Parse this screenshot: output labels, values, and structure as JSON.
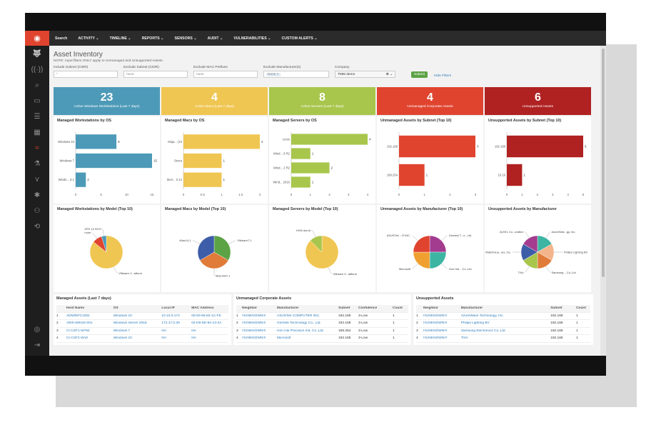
{
  "nav": [
    "Search",
    "ACTIVITY ⌄",
    "TIMELINE ⌄",
    "REPORTS ⌄",
    "SENSORS ⌄",
    "AUDIT ⌄",
    "VULNERABILITIES ⌄",
    "CUSTOM ALERTS ⌄"
  ],
  "title": "Asset Inventory",
  "note": "NOTE: Input filters ONLY apply to Unmanaged and Unsupported Assets.",
  "filters": {
    "subnet_label": "Include Subnet (CIDR)",
    "subnet_value": "*",
    "excl_subnet_label": "Exclude Subnet (CIDR)",
    "excl_subnet_value": "none",
    "excl_mac_label": "Exclude MAC Prefixes",
    "excl_mac_value": "none",
    "excl_manu_label": "Exclude Manufacturer(s)",
    "excl_manu_value": "None ×",
    "company_label": "Company",
    "company_value": "TMM demo",
    "submit": "Submit",
    "hide": "Hide Filters"
  },
  "cards": [
    {
      "n": "23",
      "l": "Active Windows Workstations (Last 7 days)",
      "color": "#4d9ab8"
    },
    {
      "n": "4",
      "l": "Active Macs (Last 7 days)",
      "color": "#f0c652"
    },
    {
      "n": "8",
      "l": "Active Servers (Last 7 days)",
      "color": "#a8c64c"
    },
    {
      "n": "4",
      "l": "Unmanaged Corporate Assets",
      "color": "#e0442f"
    },
    {
      "n": "6",
      "l": "Unsupported Assets",
      "color": "#b02121"
    }
  ],
  "panels_bar": [
    {
      "title": "Managed Workstations by OS",
      "color": "#4d9ab8",
      "max": 15,
      "ticks": [
        "0",
        "5",
        "10",
        "15"
      ],
      "cats": [
        "Windows 10",
        "Windows 7",
        "Windo... 8.1"
      ],
      "values": [
        8,
        15,
        2
      ]
    },
    {
      "title": "Managed Macs by OS",
      "color": "#f0c652",
      "max": 2,
      "ticks": [
        "0",
        "0.5",
        "1",
        "1.5",
        "2"
      ],
      "cats": [
        "Moja... (10",
        "Sierra",
        "Sierr... 0.12"
      ],
      "values": [
        2,
        1,
        1
      ]
    },
    {
      "title": "Managed Servers by OS",
      "color": "#a8c64c",
      "max": 4,
      "ticks": [
        "0",
        "1",
        "2",
        "3",
        "4"
      ],
      "cats": [
        "Linux",
        "Wind... 8 R2",
        "Wind... 2 R2",
        "Wind... 2016"
      ],
      "values": [
        4,
        1,
        2,
        1
      ]
    },
    {
      "title": "Unmanaged Assets by Subnet (Top 10)",
      "color": "#e0442f",
      "max": 3,
      "ticks": [
        "0",
        "1",
        "2",
        "3"
      ],
      "cats": [
        "192.168",
        "169.254"
      ],
      "values": [
        3,
        1
      ]
    },
    {
      "title": "Unsupported Assets by Subnet (Top 10)",
      "color": "#b02121",
      "max": 5,
      "ticks": [
        "0",
        "1",
        "2",
        "3",
        "4",
        "5"
      ],
      "cats": [
        "192.168",
        "10.16"
      ],
      "values": [
        5,
        1
      ]
    }
  ],
  "panels_pie": [
    {
      "title": "Managed Workstations by Model (Top 10)",
      "slices": [
        {
          "v": 18,
          "c": "#f0c652",
          "l": "VMware V...atform"
        },
        {
          "v": 2,
          "c": "#e0442f",
          "l": "none"
        },
        {
          "v": 1,
          "c": "#4d9ab8",
          "l": "XPS 13 9370"
        }
      ]
    },
    {
      "title": "Managed Macs by Model (Top 10)",
      "slices": [
        {
          "v": 1,
          "c": "#5ba345",
          "l": "VMware7,1"
        },
        {
          "v": 1,
          "c": "#e07b39",
          "l": "Macmini7,1"
        },
        {
          "v": 1,
          "c": "#3e5da8",
          "l": "iMac14,1"
        }
      ]
    },
    {
      "title": "Managed Servers by Model (Top 10)",
      "slices": [
        {
          "v": 7,
          "c": "#f0c652",
          "l": "VMware V...latform"
        },
        {
          "v": 1,
          "c": "#a8c64c",
          "l": "HVM domU"
        }
      ]
    },
    {
      "title": "Unmanaged Assets by Manufacturer (Top 10)",
      "slices": [
        {
          "v": 1,
          "c": "#a33b8f",
          "l": "Gemtek T...o., Ltd"
        },
        {
          "v": 1,
          "c": "#3db5a3",
          "l": "Hon Hai ...Co.,Ltd."
        },
        {
          "v": 1,
          "c": "#f0a030",
          "l": "Microsoft"
        },
        {
          "v": 1,
          "c": "#e0442f",
          "l": "ASUSTek ...R INC."
        }
      ]
    },
    {
      "title": "Unsupported Assets by Manufacturer",
      "slices": [
        {
          "v": 1,
          "c": "#3db5a3",
          "l": "AzureWav...gy, Inc."
        },
        {
          "v": 1,
          "c": "#f4b48a",
          "l": "Philips Lighting BV"
        },
        {
          "v": 1,
          "c": "#e07b39",
          "l": "Samsung ...Co.,Ltd"
        },
        {
          "v": 1,
          "c": "#a8c64c",
          "l": "TiVo"
        },
        {
          "v": 1,
          "c": "#3e5da8",
          "l": "WatchGua...ies, Inc."
        },
        {
          "v": 1,
          "c": "#a33b8f",
          "l": "ZyXEL Co...oration"
        }
      ]
    }
  ],
  "t1": {
    "title": "Managed Assets (Last 7 days)",
    "cols": [
      "",
      "Host Name",
      "OS",
      "Local IP",
      "MAC Address"
    ],
    "rows": [
      [
        "1",
        "ADMINPC1002",
        "Windows 10",
        "10.10.0.172",
        "00-50-56-83-1C-FE"
      ],
      [
        "2",
        "AWS-WIN16-001",
        "Windows Server 2016",
        "172.17.0.30",
        "02-D6-5D-94-13-2A"
      ],
      [
        "3",
        "CI-CSF1-W764",
        "Windows 7",
        "NA",
        "NA"
      ],
      [
        "4",
        "CI-CSF2-W10",
        "Windows 10",
        "NA",
        "NA"
      ]
    ]
  },
  "t2": {
    "title": "Unmanaged Corporate Assets",
    "cols": [
      "",
      "Neighbor",
      "Manufacturer",
      "Subnet",
      "Confidence",
      "Count"
    ],
    "rows": [
      [
        "1",
        "!!!UNKNOWN!!!",
        "ASUSTek COMPUTER INC.",
        "192.168",
        "3-Low",
        "1"
      ],
      [
        "2",
        "!!!UNKNOWN!!!",
        "Gemtek Technology Co., Ltd.",
        "192.168",
        "3-Low",
        "1"
      ],
      [
        "3",
        "!!!UNKNOWN!!!",
        "Hon Hai Precision Ind. Co.,Ltd.",
        "169.254",
        "3-Low",
        "1"
      ],
      [
        "4",
        "!!!UNKNOWN!!!",
        "Microsoft",
        "192.168",
        "3-Low",
        "1"
      ]
    ]
  },
  "t3": {
    "title": "Unsupported Assets",
    "cols": [
      "",
      "Neighbor",
      "Manufacturer",
      "Subnet",
      "Count"
    ],
    "rows": [
      [
        "1",
        "!!!UNKNOWN!!!",
        "AzureWave Technology, Inc.",
        "192.168",
        "1"
      ],
      [
        "2",
        "!!!UNKNOWN!!!",
        "Philips Lighting BV",
        "192.168",
        "1"
      ],
      [
        "3",
        "!!!UNKNOWN!!!",
        "Samsung Electronics Co.,Ltd",
        "192.168",
        "1"
      ],
      [
        "4",
        "!!!UNKNOWN!!!",
        "TiVo",
        "192.168",
        "1"
      ]
    ]
  }
}
